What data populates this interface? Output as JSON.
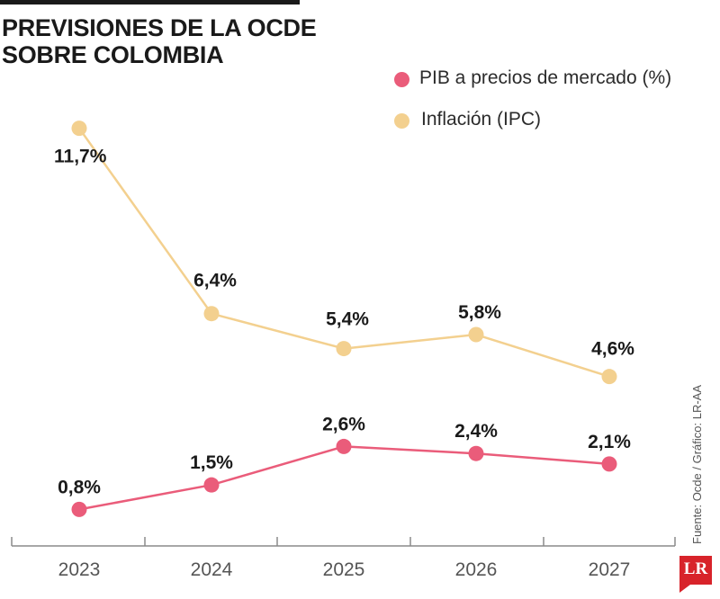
{
  "title_lines": [
    "PREVISIONES DE LA OCDE",
    "SOBRE COLOMBIA"
  ],
  "source": "Fuente: Ocde / Gráfico: LR-AA",
  "logo_text": "LR",
  "chart_data": {
    "type": "line",
    "x": [
      "2023",
      "2024",
      "2025",
      "2026",
      "2027"
    ],
    "series": [
      {
        "name": "PIB a precios de mercado (%)",
        "color": "#ea5c7a",
        "values": [
          0.8,
          1.5,
          2.6,
          2.4,
          2.1
        ],
        "labels": [
          "0,8%",
          "1,5%",
          "2,6%",
          "2,4%",
          "2,1%"
        ]
      },
      {
        "name": "Inflación (IPC)",
        "color": "#f3d08f",
        "values": [
          11.7,
          6.4,
          5.4,
          5.8,
          4.6
        ],
        "labels": [
          "11,7%",
          "6,4%",
          "5,4%",
          "5,8%",
          "4,6%"
        ]
      }
    ],
    "ylim": [
      0,
      12.9
    ],
    "grid": false,
    "legend_position": "top-right",
    "axis_color": "#8a8a8a",
    "tick_color": "#555555"
  }
}
